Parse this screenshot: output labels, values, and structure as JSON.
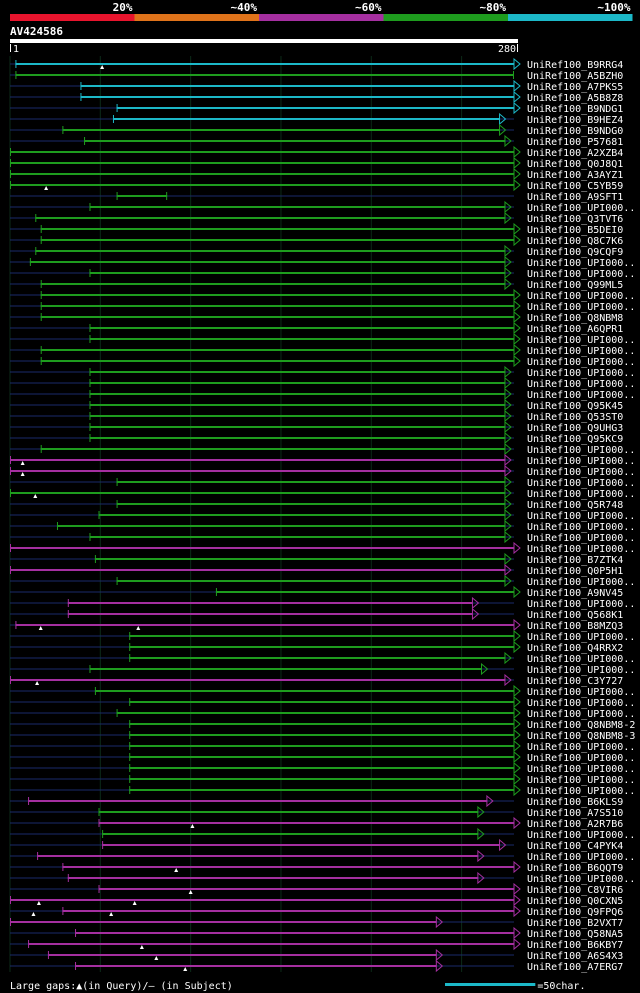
{
  "chart_data": {
    "type": "alignment-overview",
    "query_id": "AV424586",
    "axis_start": "1",
    "axis_end": "280",
    "query_length": 280,
    "identity_legend": [
      {
        "label": "20%",
        "color": "#e8142d"
      },
      {
        "label": "~40%",
        "color": "#e0731a"
      },
      {
        "label": "~60%",
        "color": "#a52fa0"
      },
      {
        "label": "~80%",
        "color": "#1e9c1e"
      },
      {
        "label": "~100%",
        "color": "#1cb8c8"
      }
    ],
    "colors": {
      "cyan": "#1cb8c8",
      "green": "#1e9c1e",
      "magenta": "#a52fa0",
      "background": "#000000",
      "faint_line": "#1a2a6a"
    },
    "hits": [
      {
        "id": "UniRef100_B9RRG4",
        "color": "cyan",
        "qs": 4,
        "qe": 280,
        "fs": 2,
        "arrow": true,
        "gaps_q": [
          52
        ]
      },
      {
        "id": "UniRef100_A5BZH0",
        "color": "green",
        "qs": 4,
        "qe": 280,
        "fs": 2,
        "arrow": false,
        "gaps_q": []
      },
      {
        "id": "UniRef100_A7PKS5",
        "color": "cyan",
        "qs": 40,
        "qe": 280,
        "fs": 2,
        "arrow": true,
        "gaps_q": []
      },
      {
        "id": "UniRef100_A5B8Z8",
        "color": "cyan",
        "qs": 40,
        "qe": 280,
        "fs": 2,
        "arrow": true,
        "gaps_q": []
      },
      {
        "id": "UniRef100_B9NDG1",
        "color": "cyan",
        "qs": 60,
        "qe": 280,
        "fs": 2,
        "arrow": true,
        "gaps_q": []
      },
      {
        "id": "UniRef100_B9HEZ4",
        "color": "cyan",
        "qs": 58,
        "qe": 272,
        "fs": 2,
        "arrow": true,
        "gaps_q": []
      },
      {
        "id": "UniRef100_B9NDG0",
        "color": "green",
        "qs": 30,
        "qe": 272,
        "fs": 2,
        "arrow": true,
        "gaps_q": []
      },
      {
        "id": "UniRef100_P57681",
        "color": "green",
        "qs": 42,
        "qe": 275,
        "fs": 2,
        "arrow": true,
        "gaps_q": []
      },
      {
        "id": "UniRef100_A2XZB4",
        "color": "green",
        "qs": 1,
        "qe": 280,
        "fs": 2,
        "arrow": true,
        "gaps_q": []
      },
      {
        "id": "UniRef100_Q0J8Q1",
        "color": "green",
        "qs": 1,
        "qe": 280,
        "fs": 2,
        "arrow": true,
        "gaps_q": []
      },
      {
        "id": "UniRef100_A3AYZ1",
        "color": "green",
        "qs": 1,
        "qe": 280,
        "fs": 2,
        "arrow": true,
        "gaps_q": []
      },
      {
        "id": "UniRef100_C5YB59",
        "color": "green",
        "qs": 1,
        "qe": 280,
        "fs": 2,
        "arrow": true,
        "gaps_q": [
          21
        ]
      },
      {
        "id": "UniRef100_A9SFT1",
        "color": "green",
        "qs": 60,
        "qe": 88,
        "fs": 2,
        "arrow": false,
        "gaps_q": []
      },
      {
        "id": "UniRef100_UPI000..",
        "color": "green",
        "qs": 45,
        "qe": 275,
        "fs": 2,
        "arrow": true,
        "gaps_q": []
      },
      {
        "id": "UniRef100_Q3TVT6",
        "color": "green",
        "qs": 15,
        "qe": 275,
        "fs": 2,
        "arrow": true,
        "gaps_q": []
      },
      {
        "id": "UniRef100_B5DEI0",
        "color": "green",
        "qs": 18,
        "qe": 280,
        "fs": 2,
        "arrow": true,
        "gaps_q": []
      },
      {
        "id": "UniRef100_Q8C7K6",
        "color": "green",
        "qs": 18,
        "qe": 280,
        "fs": 2,
        "arrow": true,
        "gaps_q": []
      },
      {
        "id": "UniRef100_Q9CQF9",
        "color": "green",
        "qs": 15,
        "qe": 275,
        "fs": 2,
        "arrow": true,
        "gaps_q": []
      },
      {
        "id": "UniRef100_UPI000..",
        "color": "green",
        "qs": 12,
        "qe": 275,
        "fs": 2,
        "arrow": true,
        "gaps_q": []
      },
      {
        "id": "UniRef100_UPI000..",
        "color": "green",
        "qs": 45,
        "qe": 275,
        "fs": 2,
        "arrow": true,
        "gaps_q": []
      },
      {
        "id": "UniRef100_Q99ML5",
        "color": "green",
        "qs": 18,
        "qe": 275,
        "fs": 2,
        "arrow": true,
        "gaps_q": []
      },
      {
        "id": "UniRef100_UPI000..",
        "color": "green",
        "qs": 18,
        "qe": 280,
        "fs": 2,
        "arrow": true,
        "gaps_q": []
      },
      {
        "id": "UniRef100_UPI000..",
        "color": "green",
        "qs": 18,
        "qe": 280,
        "fs": 2,
        "arrow": true,
        "gaps_q": []
      },
      {
        "id": "UniRef100_Q8NBM8",
        "color": "green",
        "qs": 18,
        "qe": 280,
        "fs": 2,
        "arrow": true,
        "gaps_q": []
      },
      {
        "id": "UniRef100_A6QPR1",
        "color": "green",
        "qs": 45,
        "qe": 280,
        "fs": 2,
        "arrow": true,
        "gaps_q": []
      },
      {
        "id": "UniRef100_UPI000..",
        "color": "green",
        "qs": 45,
        "qe": 280,
        "fs": 2,
        "arrow": true,
        "gaps_q": []
      },
      {
        "id": "UniRef100_UPI000..",
        "color": "green",
        "qs": 18,
        "qe": 280,
        "fs": 2,
        "arrow": true,
        "gaps_q": []
      },
      {
        "id": "UniRef100_UPI000..",
        "color": "green",
        "qs": 18,
        "qe": 280,
        "fs": 2,
        "arrow": true,
        "gaps_q": []
      },
      {
        "id": "UniRef100_UPI000..",
        "color": "green",
        "qs": 45,
        "qe": 275,
        "fs": 2,
        "arrow": true,
        "gaps_q": []
      },
      {
        "id": "UniRef100_UPI000..",
        "color": "green",
        "qs": 45,
        "qe": 275,
        "fs": 2,
        "arrow": true,
        "gaps_q": []
      },
      {
        "id": "UniRef100_UPI000..",
        "color": "green",
        "qs": 45,
        "qe": 275,
        "fs": 2,
        "arrow": true,
        "gaps_q": []
      },
      {
        "id": "UniRef100_Q95K45",
        "color": "green",
        "qs": 45,
        "qe": 275,
        "fs": 2,
        "arrow": true,
        "gaps_q": []
      },
      {
        "id": "UniRef100_Q53ST0",
        "color": "green",
        "qs": 45,
        "qe": 275,
        "fs": 2,
        "arrow": true,
        "gaps_q": []
      },
      {
        "id": "UniRef100_Q9UHG3",
        "color": "green",
        "qs": 45,
        "qe": 275,
        "fs": 2,
        "arrow": true,
        "gaps_q": []
      },
      {
        "id": "UniRef100_Q95KC9",
        "color": "green",
        "qs": 45,
        "qe": 275,
        "fs": 2,
        "arrow": true,
        "gaps_q": []
      },
      {
        "id": "UniRef100_UPI000..",
        "color": "green",
        "qs": 18,
        "qe": 275,
        "fs": 2,
        "arrow": true,
        "gaps_q": []
      },
      {
        "id": "UniRef100_UPI000..",
        "color": "magenta",
        "qs": 1,
        "qe": 275,
        "fs": 2,
        "arrow": true,
        "gaps_q": [
          8
        ]
      },
      {
        "id": "UniRef100_UPI000..",
        "color": "magenta",
        "qs": 1,
        "qe": 275,
        "fs": 2,
        "arrow": true,
        "gaps_q": [
          8
        ]
      },
      {
        "id": "UniRef100_UPI000..",
        "color": "green",
        "qs": 60,
        "qe": 275,
        "fs": 2,
        "arrow": true,
        "gaps_q": []
      },
      {
        "id": "UniRef100_UPI000..",
        "color": "green",
        "qs": 1,
        "qe": 275,
        "fs": 2,
        "arrow": true,
        "gaps_q": [
          15
        ]
      },
      {
        "id": "UniRef100_Q5R748",
        "color": "green",
        "qs": 60,
        "qe": 275,
        "fs": 2,
        "arrow": true,
        "gaps_q": []
      },
      {
        "id": "UniRef100_UPI000..",
        "color": "green",
        "qs": 50,
        "qe": 275,
        "fs": 2,
        "arrow": true,
        "gaps_q": []
      },
      {
        "id": "UniRef100_UPI000..",
        "color": "green",
        "qs": 27,
        "qe": 275,
        "fs": 2,
        "arrow": true,
        "gaps_q": []
      },
      {
        "id": "UniRef100_UPI000..",
        "color": "green",
        "qs": 45,
        "qe": 275,
        "fs": 2,
        "arrow": true,
        "gaps_q": []
      },
      {
        "id": "UniRef100_UPI000..",
        "color": "magenta",
        "qs": 1,
        "qe": 280,
        "fs": 2,
        "arrow": true,
        "gaps_q": []
      },
      {
        "id": "UniRef100_B7ZTK4",
        "color": "green",
        "qs": 48,
        "qe": 275,
        "fs": 2,
        "arrow": true,
        "gaps_q": []
      },
      {
        "id": "UniRef100_Q0P5H1",
        "color": "magenta",
        "qs": 1,
        "qe": 275,
        "fs": 2,
        "arrow": true,
        "gaps_q": []
      },
      {
        "id": "UniRef100_UPI000..",
        "color": "green",
        "qs": 60,
        "qe": 275,
        "fs": 2,
        "arrow": true,
        "gaps_q": []
      },
      {
        "id": "UniRef100_A9NV45",
        "color": "green",
        "qs": 115,
        "qe": 280,
        "fs": 2,
        "arrow": true,
        "gaps_q": []
      },
      {
        "id": "UniRef100_UPI000..",
        "color": "magenta",
        "qs": 33,
        "qe": 257,
        "fs": 2,
        "arrow": true,
        "gaps_q": []
      },
      {
        "id": "UniRef100_Q568K1",
        "color": "magenta",
        "qs": 33,
        "qe": 257,
        "fs": 2,
        "arrow": true,
        "gaps_q": []
      },
      {
        "id": "UniRef100_B8MZQ3",
        "color": "magenta",
        "qs": 4,
        "qe": 280,
        "fs": 2,
        "arrow": true,
        "gaps_q": [
          18,
          72
        ]
      },
      {
        "id": "UniRef100_UPI000..",
        "color": "green",
        "qs": 67,
        "qe": 280,
        "fs": 2,
        "arrow": true,
        "gaps_q": []
      },
      {
        "id": "UniRef100_Q4RRX2",
        "color": "green",
        "qs": 67,
        "qe": 280,
        "fs": 2,
        "arrow": true,
        "gaps_q": []
      },
      {
        "id": "UniRef100_UPI000..",
        "color": "green",
        "qs": 67,
        "qe": 275,
        "fs": 2,
        "arrow": true,
        "gaps_q": []
      },
      {
        "id": "UniRef100_UPI000..",
        "color": "green",
        "qs": 45,
        "qe": 262,
        "fs": 2,
        "arrow": true,
        "gaps_q": []
      },
      {
        "id": "UniRef100_C3Y727",
        "color": "magenta",
        "qs": 1,
        "qe": 275,
        "fs": 2,
        "arrow": true,
        "gaps_q": [
          16
        ]
      },
      {
        "id": "UniRef100_UPI000..",
        "color": "green",
        "qs": 48,
        "qe": 280,
        "fs": 2,
        "arrow": true,
        "gaps_q": []
      },
      {
        "id": "UniRef100_UPI000..",
        "color": "green",
        "qs": 67,
        "qe": 280,
        "fs": 2,
        "arrow": true,
        "gaps_q": []
      },
      {
        "id": "UniRef100_UPI000..",
        "color": "green",
        "qs": 60,
        "qe": 280,
        "fs": 2,
        "arrow": true,
        "gaps_q": []
      },
      {
        "id": "UniRef100_Q8NBM8-2",
        "color": "green",
        "qs": 67,
        "qe": 280,
        "fs": 2,
        "arrow": true,
        "gaps_q": []
      },
      {
        "id": "UniRef100_Q8NBM8-3",
        "color": "green",
        "qs": 67,
        "qe": 280,
        "fs": 2,
        "arrow": true,
        "gaps_q": []
      },
      {
        "id": "UniRef100_UPI000..",
        "color": "green",
        "qs": 67,
        "qe": 280,
        "fs": 2,
        "arrow": true,
        "gaps_q": []
      },
      {
        "id": "UniRef100_UPI000..",
        "color": "green",
        "qs": 67,
        "qe": 280,
        "fs": 2,
        "arrow": true,
        "gaps_q": []
      },
      {
        "id": "UniRef100_UPI000..",
        "color": "green",
        "qs": 67,
        "qe": 280,
        "fs": 2,
        "arrow": true,
        "gaps_q": []
      },
      {
        "id": "UniRef100_UPI000..",
        "color": "green",
        "qs": 67,
        "qe": 280,
        "fs": 2,
        "arrow": true,
        "gaps_q": []
      },
      {
        "id": "UniRef100_UPI000..",
        "color": "green",
        "qs": 67,
        "qe": 280,
        "fs": 2,
        "arrow": true,
        "gaps_q": []
      },
      {
        "id": "UniRef100_B6KLS9",
        "color": "magenta",
        "qs": 11,
        "qe": 265,
        "fs": 2,
        "arrow": true,
        "gaps_q": []
      },
      {
        "id": "UniRef100_A7S510",
        "color": "green",
        "qs": 50,
        "qe": 260,
        "fs": 2,
        "arrow": true,
        "gaps_q": []
      },
      {
        "id": "UniRef100_A2R7B6",
        "color": "magenta",
        "qs": 50,
        "qe": 280,
        "fs": 2,
        "arrow": true,
        "gaps_q": [
          102
        ]
      },
      {
        "id": "UniRef100_UPI000..",
        "color": "green",
        "qs": 52,
        "qe": 260,
        "fs": 2,
        "arrow": true,
        "gaps_q": []
      },
      {
        "id": "UniRef100_C4PYK4",
        "color": "magenta",
        "qs": 52,
        "qe": 272,
        "fs": 2,
        "arrow": true,
        "gaps_q": []
      },
      {
        "id": "UniRef100_UPI000..",
        "color": "magenta",
        "qs": 16,
        "qe": 260,
        "fs": 2,
        "arrow": true,
        "gaps_q": []
      },
      {
        "id": "UniRef100_B6QQT9",
        "color": "magenta",
        "qs": 30,
        "qe": 280,
        "fs": 2,
        "arrow": true,
        "gaps_q": [
          93
        ]
      },
      {
        "id": "UniRef100_UPI000..",
        "color": "magenta",
        "qs": 33,
        "qe": 260,
        "fs": 2,
        "arrow": true,
        "gaps_q": []
      },
      {
        "id": "UniRef100_C8VIR6",
        "color": "magenta",
        "qs": 50,
        "qe": 280,
        "fs": 2,
        "arrow": true,
        "gaps_q": [
          101
        ]
      },
      {
        "id": "UniRef100_Q0CXN5",
        "color": "magenta",
        "qs": 1,
        "qe": 280,
        "fs": 2,
        "arrow": true,
        "gaps_q": [
          17,
          70
        ]
      },
      {
        "id": "UniRef100_Q9FPQ6",
        "color": "magenta",
        "qs": 30,
        "qe": 280,
        "fs": 2,
        "arrow": true,
        "gaps_q": [
          14,
          57
        ]
      },
      {
        "id": "UniRef100_B2VXT7",
        "color": "magenta",
        "qs": 1,
        "qe": 237,
        "fs": 2,
        "arrow": true,
        "gaps_q": []
      },
      {
        "id": "UniRef100_Q58NA5",
        "color": "magenta",
        "qs": 37,
        "qe": 280,
        "fs": 2,
        "arrow": true,
        "gaps_q": []
      },
      {
        "id": "UniRef100_B6KBY7",
        "color": "magenta",
        "qs": 11,
        "qe": 280,
        "fs": 2,
        "arrow": true,
        "gaps_q": [
          74
        ]
      },
      {
        "id": "UniRef100_A6S4X3",
        "color": "magenta",
        "qs": 22,
        "qe": 237,
        "fs": 2,
        "arrow": true,
        "gaps_q": [
          82
        ]
      },
      {
        "id": "UniRef100_A7ERG7",
        "color": "magenta",
        "qs": 37,
        "qe": 237,
        "fs": 2,
        "arrow": true,
        "gaps_q": [
          98
        ]
      }
    ],
    "footer_legend": {
      "gaps_text": "Large gaps:▲(in Query)/– (in Subject)",
      "scale_text": "=50char.",
      "scale_chars": 50
    }
  }
}
